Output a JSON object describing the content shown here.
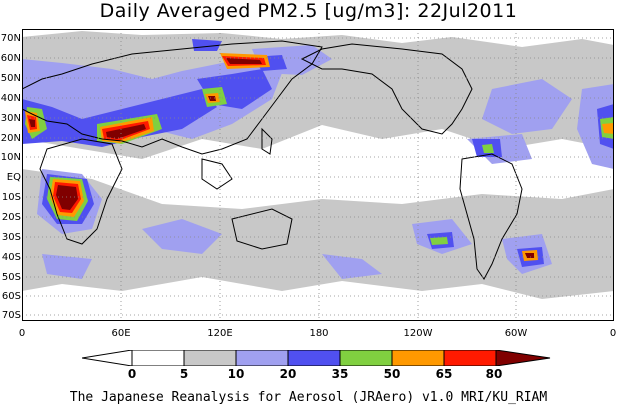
{
  "title": "Daily Averaged PM2.5 [ug/m3]: 22Jul2011",
  "footer": "The Japanese Reanalysis for Aerosol (JRAero) v1.0 MRI/KU_RIAM",
  "lat_labels": [
    "70N",
    "60N",
    "50N",
    "40N",
    "30N",
    "20N",
    "10N",
    "EQ",
    "10S",
    "20S",
    "30S",
    "40S",
    "50S",
    "60S",
    "70S"
  ],
  "lon_labels": [
    "0",
    "60E",
    "120E",
    "180",
    "120W",
    "60W",
    "0"
  ],
  "colorbar": {
    "labels": [
      "0",
      "5",
      "10",
      "20",
      "35",
      "50",
      "65",
      "80"
    ],
    "colors": [
      "#ffffff",
      "#c8c8c8",
      "#a0a0f0",
      "#5050f0",
      "#80d040",
      "#ff9900",
      "#ff1a00",
      "#800000"
    ]
  }
}
